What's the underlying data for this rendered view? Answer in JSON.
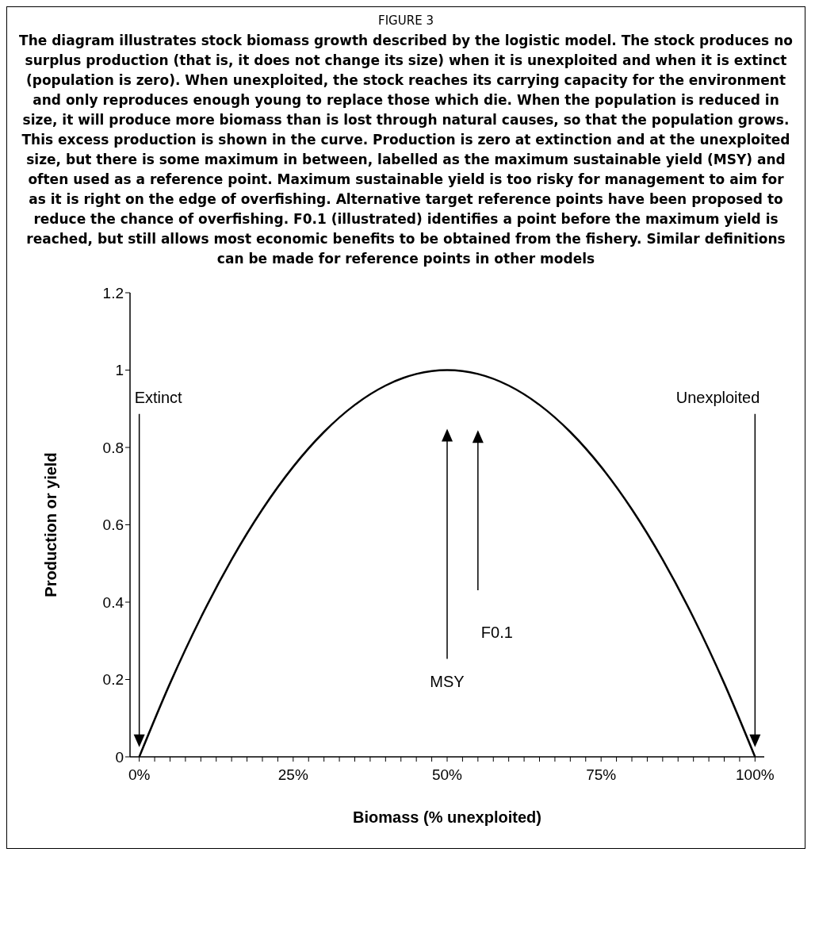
{
  "chart_data": {
    "type": "line",
    "title": "FIGURE 3",
    "subtitle": "The diagram illustrates stock biomass growth described by the logistic model. The stock produces no surplus production (that is, it does not change its size) when it is unexploited and when it is extinct (population is zero). When unexploited, the stock reaches its carrying capacity for the environment and only reproduces enough young to replace those which die. When the population is reduced in size, it will produce more biomass than is lost through natural causes, so that the population grows. This excess production is shown in the curve. Production is zero at extinction and at the unexploited size, but there is some maximum in between, labelled as the maximum sustainable yield (MSY) and often used as a reference point. Maximum sustainable yield is too risky for management to aim for as it is right on the edge of overfishing. Alternative target reference points have been proposed to reduce the chance of overfishing. F0.1 (illustrated) identifies a point before the maximum yield is reached, but still allows most economic benefits to be obtained from the fishery. Similar definitions can be made for reference points in other models",
    "xlabel": "Biomass (% unexploited)",
    "ylabel": "Production or yield",
    "x": [
      0,
      5,
      10,
      15,
      20,
      25,
      30,
      35,
      40,
      45,
      50,
      55,
      60,
      65,
      70,
      75,
      80,
      85,
      90,
      95,
      100
    ],
    "series": [
      {
        "color": "#000000",
        "values": [
          0,
          0.19,
          0.36,
          0.51,
          0.64,
          0.75,
          0.84,
          0.91,
          0.96,
          0.99,
          1,
          0.99,
          0.96,
          0.91,
          0.84,
          0.75,
          0.64,
          0.51,
          0.36,
          0.19,
          0
        ]
      }
    ],
    "xlim": [
      -1.5,
      101.5
    ],
    "xticks": [
      {
        "value": 0,
        "label": "0%"
      },
      {
        "value": 2.5,
        "label": null
      },
      {
        "value": 5,
        "label": null
      },
      {
        "value": 7.5,
        "label": null
      },
      {
        "value": 10,
        "label": null
      },
      {
        "value": 12.5,
        "label": null
      },
      {
        "value": 15,
        "label": null
      },
      {
        "value": 17.5,
        "label": null
      },
      {
        "value": 20,
        "label": null
      },
      {
        "value": 22.5,
        "label": null
      },
      {
        "value": 25,
        "label": "25%"
      },
      {
        "value": 27.5,
        "label": null
      },
      {
        "value": 30,
        "label": null
      },
      {
        "value": 32.5,
        "label": null
      },
      {
        "value": 35,
        "label": null
      },
      {
        "value": 37.5,
        "label": null
      },
      {
        "value": 40,
        "label": null
      },
      {
        "value": 42.5,
        "label": null
      },
      {
        "value": 45,
        "label": null
      },
      {
        "value": 47.5,
        "label": null
      },
      {
        "value": 50,
        "label": "50%"
      },
      {
        "value": 52.5,
        "label": null
      },
      {
        "value": 55,
        "label": null
      },
      {
        "value": 57.5,
        "label": null
      },
      {
        "value": 60,
        "label": null
      },
      {
        "value": 62.5,
        "label": null
      },
      {
        "value": 65,
        "label": null
      },
      {
        "value": 67.5,
        "label": null
      },
      {
        "value": 70,
        "label": null
      },
      {
        "value": 72.5,
        "label": null
      },
      {
        "value": 75,
        "label": "75%"
      },
      {
        "value": 77.5,
        "label": null
      },
      {
        "value": 80,
        "label": null
      },
      {
        "value": 82.5,
        "label": null
      },
      {
        "value": 85,
        "label": null
      },
      {
        "value": 87.5,
        "label": null
      },
      {
        "value": 90,
        "label": null
      },
      {
        "value": 92.5,
        "label": null
      },
      {
        "value": 95,
        "label": null
      },
      {
        "value": 97.5,
        "label": null
      },
      {
        "value": 100,
        "label": "100%"
      }
    ],
    "ylim": [
      0,
      1.2
    ],
    "yticks": [
      0,
      0.2,
      0.4,
      0.6,
      0.8,
      1,
      1.2
    ],
    "grid": false,
    "legend": false,
    "marker": "none",
    "line_style": "solid",
    "ref_lines": [
      {
        "axis": "x",
        "value": 0,
        "label": "Extinct",
        "color": "#000000",
        "line_style": "solid"
      },
      {
        "axis": "x",
        "value": 100,
        "label": "Unexploited",
        "color": "#000000",
        "line_style": "solid"
      },
      {
        "axis": "x",
        "value": 50,
        "label": "MSY",
        "color": "#000000",
        "line_style": "solid"
      },
      {
        "axis": "x",
        "value": 55,
        "label": "F0.1",
        "color": "#000000",
        "line_style": "solid"
      }
    ]
  }
}
